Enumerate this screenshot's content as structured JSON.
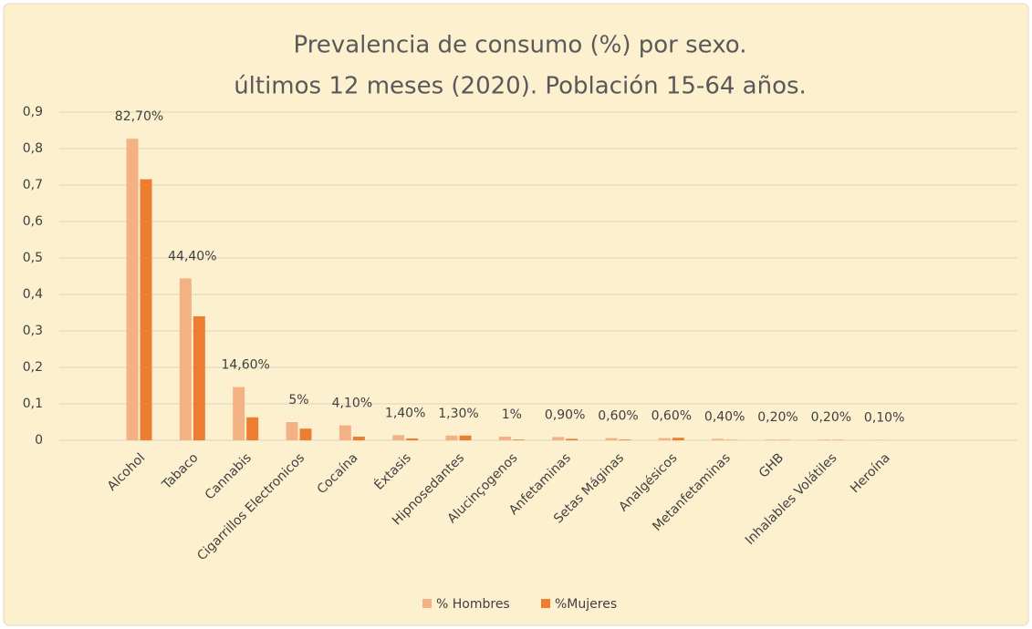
{
  "chart_data": {
    "type": "bar",
    "title": "Prevalencia de consumo (%) por sexo.",
    "subtitle": "últimos 12 meses (2020). Población 15-64 años.",
    "categories": [
      null,
      "Alcohol",
      "Tabaco",
      "Cannabis",
      "Cigarrillos Electronicos",
      "Cocaína",
      "Éxtasis",
      "Hipnosedantes",
      "Alucinçogenos",
      "Anfetaminas",
      "Setas Máginas",
      "Analgésicos",
      "Metanfetaminas",
      "GHB",
      "Inhalables Volátiles",
      "Heroína",
      null,
      null
    ],
    "series": [
      {
        "name": "% Hombres",
        "color": "#f4b183",
        "values": [
          null,
          0.827,
          0.444,
          0.146,
          0.05,
          0.041,
          0.014,
          0.013,
          0.01,
          0.009,
          0.006,
          0.006,
          0.004,
          0.002,
          0.002,
          0.001,
          null,
          null
        ],
        "value_labels": [
          null,
          "82,70%",
          "44,40%",
          "14,60%",
          "5%",
          "4,10%",
          "1,40%",
          "1,30%",
          "1%",
          "0,90%",
          "0,60%",
          "0,60%",
          "0,40%",
          "0,20%",
          "0,20%",
          "0,10%",
          null,
          null
        ]
      },
      {
        "name": "%Mujeres",
        "color": "#ed7d31",
        "values": [
          null,
          0.716,
          0.34,
          0.063,
          0.032,
          0.01,
          0.005,
          0.013,
          0.002,
          0.004,
          0.002,
          0.007,
          0.001,
          0.001,
          0.001,
          0,
          null,
          null
        ]
      }
    ],
    "ylim": [
      0,
      0.9
    ],
    "yticks": [
      0,
      {
        "value": 0.1,
        "label": "0,1"
      },
      {
        "value": 0.2,
        "label": "0,2"
      },
      {
        "value": 0.3,
        "label": "0,3"
      },
      {
        "value": 0.4,
        "label": "0,4"
      },
      {
        "value": 0.5,
        "label": "0,5"
      },
      {
        "value": 0.6,
        "label": "0,6"
      },
      {
        "value": 0.7,
        "label": "0,7"
      },
      {
        "value": 0.8,
        "label": "0,8"
      },
      {
        "value": 0.9,
        "label": "0,9"
      }
    ],
    "grid": true,
    "legend": "bottom"
  }
}
